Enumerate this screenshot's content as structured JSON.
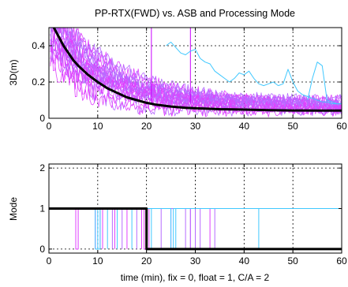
{
  "chart_data": [
    {
      "type": "line",
      "title": "PP-RTX(FWD) vs. ASB and Processing Mode",
      "xlabel": "",
      "ylabel": "3D(m)",
      "xlim": [
        0,
        60
      ],
      "ylim": [
        0,
        0.5
      ],
      "xticks": [
        0,
        10,
        20,
        30,
        40,
        50,
        60
      ],
      "yticks": [
        0,
        0.2,
        0.4
      ],
      "xtick_labels": [
        "0",
        "10",
        "20",
        "30",
        "40",
        "50",
        "60"
      ],
      "ytick_labels": [
        "0",
        "0.2",
        "0.4"
      ],
      "grid": true,
      "colors": {
        "mean": "#000000",
        "family_a": "#e040ff",
        "family_b": "#b66bff",
        "family_c": "#40c8ff",
        "spike": "#c800ff"
      },
      "series": [
        {
          "color": "#000000",
          "x": [
            1,
            2,
            3,
            4,
            5,
            6,
            8,
            10,
            12,
            14,
            16,
            18,
            20,
            22,
            25,
            28,
            30,
            35,
            40,
            45,
            50,
            55,
            60
          ],
          "y": [
            0.5,
            0.45,
            0.4,
            0.36,
            0.32,
            0.29,
            0.24,
            0.2,
            0.165,
            0.14,
            0.115,
            0.1,
            0.085,
            0.075,
            0.065,
            0.058,
            0.055,
            0.05,
            0.048,
            0.045,
            0.043,
            0.042,
            0.042
          ]
        },
        {
          "color": "#40c8ff",
          "x": [
            24,
            25,
            26,
            27,
            28,
            29,
            30,
            31,
            32,
            33,
            34,
            35,
            36,
            37,
            38,
            39,
            40,
            41,
            42,
            43,
            44,
            45,
            46,
            47
          ],
          "y": [
            0.4,
            0.42,
            0.39,
            0.36,
            0.35,
            0.37,
            0.38,
            0.33,
            0.31,
            0.3,
            0.26,
            0.24,
            0.22,
            0.2,
            0.22,
            0.25,
            0.24,
            0.26,
            0.22,
            0.19,
            0.18,
            0.19,
            0.2,
            0.18
          ]
        },
        {
          "color": "#40c8ff",
          "x": [
            47,
            48,
            49,
            50,
            51,
            52,
            53,
            54,
            55,
            56,
            57,
            58,
            59,
            60
          ],
          "y": [
            0.18,
            0.19,
            0.27,
            0.2,
            0.15,
            0.13,
            0.12,
            0.11,
            0.1,
            0.09,
            0.09,
            0.08,
            0.08,
            0.08
          ]
        },
        {
          "color": "#40c8ff",
          "x": [
            53,
            54,
            55,
            56,
            57,
            58,
            59,
            60
          ],
          "y": [
            0.1,
            0.22,
            0.31,
            0.29,
            0.1,
            0.09,
            0.08,
            0.08
          ]
        }
      ]
    },
    {
      "type": "line",
      "title": "",
      "xlabel": "time (min), fix = 0, float = 1, C/A = 2",
      "ylabel": "Mode",
      "xlim": [
        0,
        60
      ],
      "ylim": [
        -0.1,
        2.1
      ],
      "xticks": [
        0,
        10,
        20,
        30,
        40,
        50,
        60
      ],
      "yticks": [
        0,
        1,
        2
      ],
      "xtick_labels": [
        "0",
        "10",
        "20",
        "30",
        "40",
        "50",
        "60"
      ],
      "ytick_labels": [
        "0",
        "1",
        "2"
      ],
      "grid": true,
      "series": [
        {
          "color": "#000000",
          "x": [
            0,
            20,
            20,
            60
          ],
          "y": [
            1,
            1,
            0,
            0
          ]
        },
        {
          "color": "#e040ff",
          "x": [
            0,
            5.5,
            5.5,
            6,
            6,
            60
          ],
          "y": [
            1,
            1,
            0,
            0,
            1,
            1
          ]
        },
        {
          "color": "#e040ff",
          "x": [
            0,
            19.5,
            19.5,
            20.5,
            20.5,
            33,
            33,
            60
          ],
          "y": [
            1,
            1,
            0,
            0,
            1,
            1,
            0,
            0
          ]
        },
        {
          "color": "#40c8ff",
          "x": [
            0,
            9.5,
            9.5,
            10.5,
            10.5,
            43,
            43,
            60
          ],
          "y": [
            1,
            1,
            0,
            0,
            1,
            1,
            0,
            0
          ]
        },
        {
          "color": "#b66bff",
          "x": [
            0,
            29,
            29,
            30,
            30,
            34,
            34,
            60
          ],
          "y": [
            1,
            1,
            0,
            0,
            1,
            1,
            0,
            0
          ]
        },
        {
          "color": "#40c8ff",
          "x": [
            0,
            25,
            25,
            25.5,
            25.5,
            60
          ],
          "y": [
            1,
            1,
            0,
            0,
            1,
            1
          ]
        }
      ],
      "transitions_x": [
        9.5,
        10,
        10.5,
        11,
        12,
        13,
        13.5,
        14,
        15,
        16,
        17,
        18,
        19,
        21,
        23,
        25,
        26,
        28,
        29,
        30,
        31
      ]
    }
  ]
}
